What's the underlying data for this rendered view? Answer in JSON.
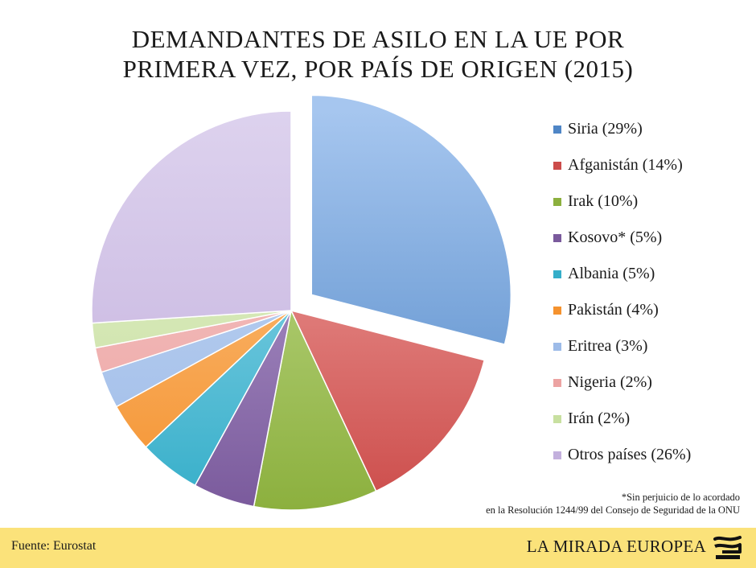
{
  "title_lines": [
    "DEMANDANTES DE ASILO EN LA UE POR",
    "PRIMERA VEZ, POR PAÍS DE ORIGEN (2015)"
  ],
  "chart_data": {
    "type": "pie",
    "title": "DEMANDANTES DE ASILO EN LA UE POR PRIMERA VEZ, POR PAÍS DE ORIGEN (2015)",
    "unit": "%",
    "exploded_slice": "Siria",
    "legend_position": "right",
    "slices": [
      {
        "name": "Siria",
        "value": 29,
        "label": "Siria (29%)",
        "color": "#4f86c6",
        "light": "#a6c6ef"
      },
      {
        "name": "Afganistán",
        "value": 14,
        "label": "Afganistán (14%)",
        "color": "#cc4c4a",
        "light": "#f2aaa8"
      },
      {
        "name": "Irak",
        "value": 10,
        "label": "Irak (10%)",
        "color": "#8cb03e",
        "light": "#c6df95"
      },
      {
        "name": "Kosovo*",
        "value": 5,
        "label": "Kosovo* (5%)",
        "color": "#7a5a9c",
        "light": "#bca7d6"
      },
      {
        "name": "Albania",
        "value": 5,
        "label": "Albania (5%)",
        "color": "#35aec9",
        "light": "#9edcee"
      },
      {
        "name": "Pakistán",
        "value": 4,
        "label": "Pakistán (4%)",
        "color": "#f5922e",
        "light": "#fbc88e"
      },
      {
        "name": "Eritrea",
        "value": 3,
        "label": "Eritrea (3%)",
        "color": "#9dbbe8",
        "light": "#c6d8f3"
      },
      {
        "name": "Nigeria",
        "value": 2,
        "label": "Nigeria (2%)",
        "color": "#eca3a2",
        "light": "#f6c9c8"
      },
      {
        "name": "Irán",
        "value": 2,
        "label": "Irán (2%)",
        "color": "#c8e0a0",
        "light": "#e2efcb"
      },
      {
        "name": "Otros países",
        "value": 26,
        "label": "Otros países (26%)",
        "color": "#c3b0dd",
        "light": "#ddd2ee"
      }
    ]
  },
  "footnote": [
    "*Sin perjuicio de lo acordado",
    "en la Resolución 1244/99 del Consejo de Seguridad de la ONU"
  ],
  "footer": {
    "source": "Fuente: Eurostat",
    "brand": "LA MIRADA EUROPEA",
    "background": "#fbe27a"
  }
}
